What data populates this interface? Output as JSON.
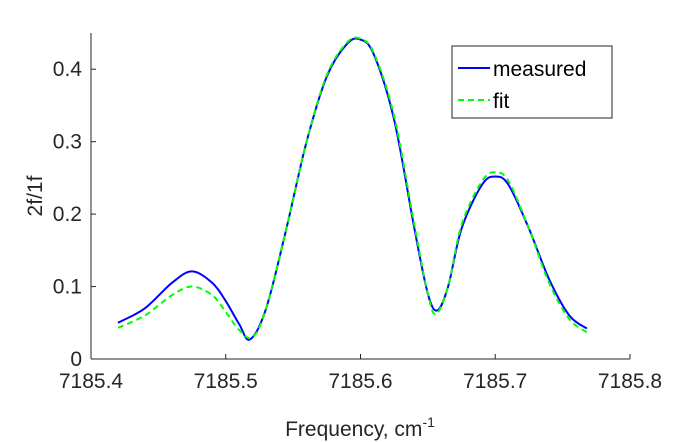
{
  "chart_data": {
    "type": "line",
    "xlabel": "Frequency, cm",
    "xlabel_superscript": "-1",
    "ylabel": "2f/1f",
    "xlim": [
      7185.4,
      7185.8
    ],
    "ylim": [
      0,
      0.45
    ],
    "x_ticks": [
      "7185.4",
      "7185.5",
      "7185.6",
      "7185.7",
      "7185.8"
    ],
    "y_ticks": [
      "0",
      "0.1",
      "0.2",
      "0.3",
      "0.4"
    ],
    "grid": false,
    "legend_position": "top-right",
    "series": [
      {
        "name": "measured",
        "color": "#0000ff",
        "style": "solid",
        "x": [
          7185.42,
          7185.44,
          7185.46,
          7185.475,
          7185.49,
          7185.5,
          7185.51,
          7185.518,
          7185.53,
          7185.545,
          7185.56,
          7185.575,
          7185.59,
          7185.6,
          7185.61,
          7185.625,
          7185.64,
          7185.65,
          7185.657,
          7185.665,
          7185.675,
          7185.69,
          7185.7,
          7185.71,
          7185.725,
          7185.74,
          7185.755,
          7185.768
        ],
        "y": [
          0.05,
          0.07,
          0.105,
          0.121,
          0.105,
          0.08,
          0.048,
          0.027,
          0.07,
          0.18,
          0.3,
          0.39,
          0.435,
          0.441,
          0.42,
          0.33,
          0.18,
          0.09,
          0.067,
          0.1,
          0.18,
          0.24,
          0.252,
          0.24,
          0.18,
          0.11,
          0.06,
          0.042
        ]
      },
      {
        "name": "fit",
        "color": "#00ff00",
        "style": "dashed",
        "x": [
          7185.42,
          7185.44,
          7185.46,
          7185.475,
          7185.49,
          7185.5,
          7185.51,
          7185.52,
          7185.53,
          7185.545,
          7185.56,
          7185.575,
          7185.59,
          7185.6,
          7185.61,
          7185.625,
          7185.64,
          7185.65,
          7185.656,
          7185.665,
          7185.675,
          7185.69,
          7185.7,
          7185.71,
          7185.725,
          7185.74,
          7185.755,
          7185.768
        ],
        "y": [
          0.043,
          0.06,
          0.088,
          0.1,
          0.088,
          0.065,
          0.04,
          0.03,
          0.07,
          0.18,
          0.3,
          0.392,
          0.437,
          0.442,
          0.422,
          0.335,
          0.185,
          0.09,
          0.062,
          0.1,
          0.185,
          0.245,
          0.258,
          0.245,
          0.18,
          0.105,
          0.055,
          0.037
        ]
      }
    ]
  }
}
